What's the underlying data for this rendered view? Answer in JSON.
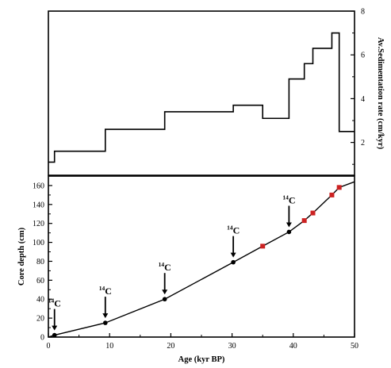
{
  "chart_data": [
    {
      "type": "line",
      "subtype": "step",
      "title": "",
      "xlabel": "",
      "ylabel": "Av.Sedimentation rate (cm/kyr)",
      "xlim": [
        0,
        50
      ],
      "ylim": [
        0.5,
        8
      ],
      "yticks": [
        "2",
        "4",
        "6",
        "8"
      ],
      "yaxis_side": "right",
      "steps": [
        {
          "x0": 0.0,
          "x1": 1.0,
          "y": 1.1
        },
        {
          "x0": 1.0,
          "x1": 9.3,
          "y": 1.6
        },
        {
          "x0": 9.3,
          "x1": 19.0,
          "y": 2.6
        },
        {
          "x0": 19.0,
          "x1": 30.2,
          "y": 3.4
        },
        {
          "x0": 30.2,
          "x1": 35.0,
          "y": 3.7
        },
        {
          "x0": 35.0,
          "x1": 39.3,
          "y": 3.1
        },
        {
          "x0": 39.3,
          "x1": 41.8,
          "y": 4.9
        },
        {
          "x0": 41.8,
          "x1": 43.2,
          "y": 5.6
        },
        {
          "x0": 43.2,
          "x1": 46.3,
          "y": 6.3
        },
        {
          "x0": 46.3,
          "x1": 47.5,
          "y": 7.0
        },
        {
          "x0": 47.5,
          "x1": 50.0,
          "y": 2.5
        }
      ]
    },
    {
      "type": "line",
      "title": "",
      "xlabel": "Age (kyr BP)",
      "ylabel": "Core depth (cm)",
      "xlim": [
        0,
        50
      ],
      "ylim": [
        0,
        170
      ],
      "xticks": [
        "0",
        "10",
        "20",
        "30",
        "40",
        "50"
      ],
      "yticks": [
        "0",
        "20",
        "40",
        "60",
        "80",
        "100",
        "120",
        "140",
        "160"
      ],
      "line": {
        "x": [
          0,
          1.0,
          9.3,
          19.0,
          30.2,
          35.0,
          39.3,
          41.8,
          43.2,
          46.3,
          47.5,
          50.0
        ],
        "y": [
          0,
          2,
          15,
          40,
          79,
          96,
          111,
          123,
          131,
          150,
          158,
          164
        ]
      },
      "points": [
        {
          "x": 1.0,
          "y": 2,
          "color": "#000000",
          "label": "C",
          "label_sup": "14"
        },
        {
          "x": 9.3,
          "y": 15,
          "color": "#000000",
          "label": "C",
          "label_sup": "14"
        },
        {
          "x": 19.0,
          "y": 40,
          "color": "#000000",
          "label": "C",
          "label_sup": "14"
        },
        {
          "x": 30.2,
          "y": 79,
          "color": "#000000",
          "label": "C",
          "label_sup": "14"
        },
        {
          "x": 35.0,
          "y": 96,
          "color": "#cc2222",
          "label": ""
        },
        {
          "x": 39.3,
          "y": 111,
          "color": "#000000",
          "label": "C",
          "label_sup": "14"
        },
        {
          "x": 41.8,
          "y": 123,
          "color": "#cc2222",
          "label": ""
        },
        {
          "x": 43.2,
          "y": 131,
          "color": "#cc2222",
          "label": ""
        },
        {
          "x": 46.3,
          "y": 150,
          "color": "#cc2222",
          "label": ""
        },
        {
          "x": 47.5,
          "y": 158,
          "color": "#cc2222",
          "label": ""
        }
      ]
    }
  ]
}
